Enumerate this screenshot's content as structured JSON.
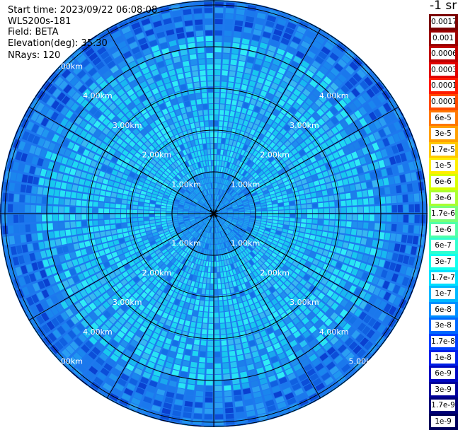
{
  "header": {
    "start_time": "Start time: 2023/09/22 06:08:08",
    "instrument": "WLS200s-181",
    "field": "Field: BETA",
    "elevation": "Elevation(deg): 35.30",
    "nrays": "NRays: 120"
  },
  "ppi": {
    "rings_km": [
      "1.00km",
      "2.00km",
      "3.00km",
      "4.00km",
      "5.00km"
    ],
    "n_rays": 120,
    "spoke_count": 12
  },
  "colorbar": {
    "title": "-1 sr",
    "levels": [
      {
        "label": "0.0017",
        "color": "#7a0000"
      },
      {
        "label": "0.001",
        "color": "#9b0000"
      },
      {
        "label": "0.0006",
        "color": "#bf0000"
      },
      {
        "label": "0.0003",
        "color": "#e00000"
      },
      {
        "label": "0.00017",
        "color": "#ff1a00"
      },
      {
        "label": "0.0001",
        "color": "#ff4a00"
      },
      {
        "label": "6e-5",
        "color": "#ff7800"
      },
      {
        "label": "3e-5",
        "color": "#ffa000"
      },
      {
        "label": "1.7e-5",
        "color": "#ffc800"
      },
      {
        "label": "1e-5",
        "color": "#ffee00"
      },
      {
        "label": "6e-6",
        "color": "#d8ff00"
      },
      {
        "label": "3e-6",
        "color": "#a8ff30"
      },
      {
        "label": "1.7e-6",
        "color": "#78ff78"
      },
      {
        "label": "1e-6",
        "color": "#50ffa8"
      },
      {
        "label": "6e-7",
        "color": "#30ffd0"
      },
      {
        "label": "3e-7",
        "color": "#10ffee"
      },
      {
        "label": "1.7e-7",
        "color": "#00e0ff"
      },
      {
        "label": "1e-7",
        "color": "#00b8ff"
      },
      {
        "label": "6e-8",
        "color": "#0090ff"
      },
      {
        "label": "3e-8",
        "color": "#0068ff"
      },
      {
        "label": "1.7e-8",
        "color": "#0040ff"
      },
      {
        "label": "1e-8",
        "color": "#0020e8"
      },
      {
        "label": "6e-9",
        "color": "#0008c0"
      },
      {
        "label": "3e-9",
        "color": "#00009a"
      },
      {
        "label": "1.7e-9",
        "color": "#000078"
      },
      {
        "label": "1e-9",
        "color": "#00005a"
      }
    ]
  }
}
